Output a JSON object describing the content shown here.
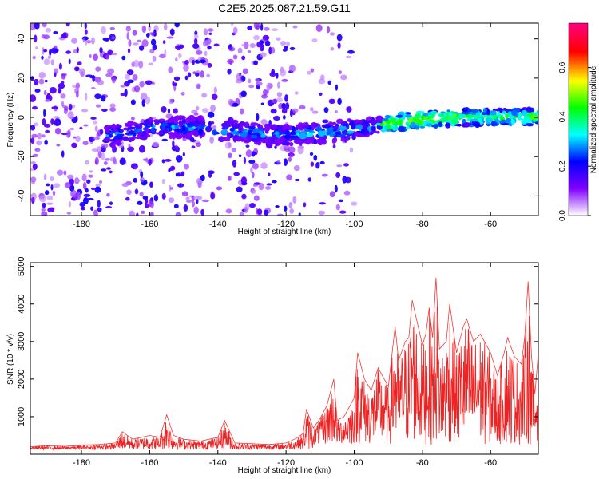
{
  "figure_title": "C2E5.2025.087.21.59.G11",
  "chart_data": [
    {
      "type": "heatmap",
      "title": "C2E5.2025.087.21.59.G11",
      "xlabel": "Height of straight line (km)",
      "ylabel": "Frequency (Hz)",
      "xlim": [
        -195,
        -46
      ],
      "ylim": [
        -50,
        48
      ],
      "x_ticks": [
        -180,
        -160,
        -140,
        -120,
        -100,
        -80,
        -60
      ],
      "y_ticks": [
        -40,
        -20,
        0,
        20,
        40
      ],
      "colorbar": {
        "label": "Normalized spectral amplitude",
        "range": [
          0.0,
          0.78
        ],
        "ticks": [
          0.0,
          0.2,
          0.4,
          0.6
        ],
        "colormap": [
          "#ffffff",
          "#8000ff",
          "#0000ff",
          "#00ffff",
          "#00ff00",
          "#ffff00",
          "#ff0000",
          "#ff0080"
        ]
      },
      "grid": false,
      "signal_band": {
        "x_start": -173,
        "x_end": -46,
        "frequency_center": [
          [
            -173,
            -10
          ],
          [
            -160,
            -5
          ],
          [
            -145,
            -5
          ],
          [
            -130,
            -8
          ],
          [
            -120,
            -9
          ],
          [
            -110,
            -8
          ],
          [
            -100,
            -6
          ],
          [
            -90,
            -3
          ],
          [
            -80,
            -1
          ],
          [
            -70,
            0
          ],
          [
            -60,
            0
          ],
          [
            -46,
            0
          ]
        ]
      }
    },
    {
      "type": "line",
      "xlabel": "Height of straight line (km)",
      "ylabel": "SNR (10 * v/v)",
      "xlim": [
        -195,
        -46
      ],
      "ylim": [
        0,
        5100
      ],
      "x_ticks": [
        -180,
        -160,
        -140,
        -120,
        -100,
        -80,
        -60
      ],
      "y_ticks": [
        1000,
        2000,
        3000,
        4000,
        5000
      ],
      "color": "#ee2222",
      "grid": false,
      "series": [
        {
          "x": [
            -195,
            -190,
            -185,
            -180,
            -175,
            -170,
            -168,
            -165,
            -160,
            -157,
            -155,
            -153,
            -150,
            -145,
            -140,
            -138,
            -135,
            -130,
            -125,
            -120,
            -117,
            -115,
            -114,
            -112,
            -110,
            -108,
            -106,
            -105,
            -103,
            -100,
            -99,
            -97,
            -95,
            -93,
            -90,
            -88,
            -87,
            -85,
            -84,
            -83,
            -80,
            -79,
            -78,
            -77,
            -76,
            -75,
            -73,
            -72,
            -70,
            -68,
            -67,
            -65,
            -63,
            -60,
            -58,
            -56,
            -55,
            -53,
            -51,
            -50,
            -49,
            -48,
            -47,
            -46
          ],
          "values": [
            200,
            230,
            210,
            240,
            260,
            300,
            600,
            400,
            500,
            450,
            1050,
            500,
            400,
            350,
            450,
            900,
            300,
            280,
            260,
            300,
            420,
            550,
            1200,
            700,
            950,
            1300,
            2000,
            900,
            1000,
            1500,
            2700,
            2000,
            1700,
            2300,
            1800,
            3400,
            2500,
            3000,
            3100,
            4100,
            2900,
            3200,
            3900,
            3100,
            4700,
            2800,
            3000,
            4000,
            2700,
            3400,
            3600,
            3000,
            3200,
            2700,
            2100,
            2700,
            3100,
            2600,
            2400,
            3100,
            4600,
            2600,
            1600,
            2700
          ]
        }
      ]
    }
  ]
}
